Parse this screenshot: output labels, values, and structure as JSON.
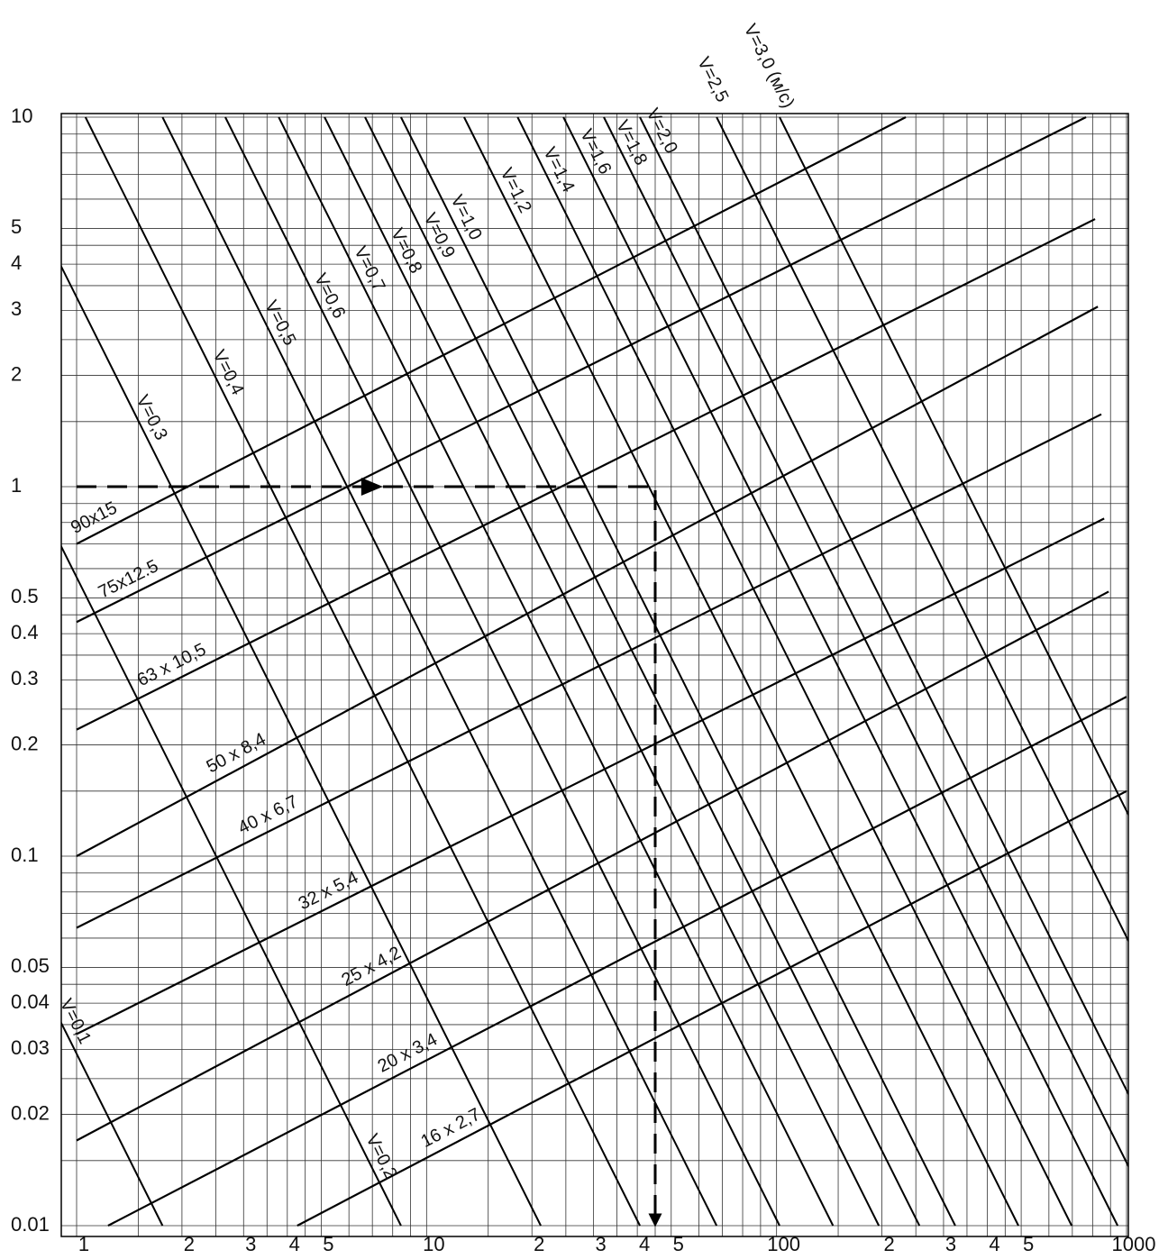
{
  "chart_data": {
    "type": "nomogram",
    "log_x": true,
    "log_y": true,
    "xlim": [
      1,
      1000
    ],
    "ylim": [
      0.01,
      10
    ],
    "xticks": [
      1,
      2,
      3,
      4,
      5,
      10,
      {
        "value": 20,
        "label": "2"
      },
      {
        "value": 30,
        "label": "3"
      },
      {
        "value": 40,
        "label": "4"
      },
      {
        "value": 50,
        "label": "5"
      },
      100,
      {
        "value": 200,
        "label": "2"
      },
      {
        "value": 300,
        "label": "3"
      },
      {
        "value": 400,
        "label": "4"
      },
      {
        "value": 500,
        "label": "5"
      },
      1000
    ],
    "yticks": [
      0.01,
      0.02,
      0.03,
      0.04,
      0.05,
      0.1,
      0.2,
      0.3,
      0.4,
      0.5,
      1,
      2,
      3,
      4,
      5,
      10
    ],
    "xgrid": [
      1,
      1.5,
      2,
      2.5,
      3,
      3.5,
      4,
      4.5,
      5,
      6,
      7,
      8,
      9,
      10,
      15,
      20,
      25,
      30,
      35,
      40,
      45,
      50,
      60,
      70,
      80,
      90,
      100,
      150,
      200,
      250,
      300,
      350,
      400,
      450,
      500,
      600,
      700,
      800,
      900,
      1000
    ],
    "ygrid": [
      0.01,
      0.015,
      0.02,
      0.025,
      0.03,
      0.035,
      0.04,
      0.045,
      0.05,
      0.06,
      0.07,
      0.08,
      0.09,
      0.1,
      0.15,
      0.2,
      0.25,
      0.3,
      0.35,
      0.4,
      0.45,
      0.5,
      0.6,
      0.7,
      0.8,
      0.9,
      1,
      1.5,
      2,
      2.5,
      3,
      3.5,
      4,
      4.5,
      5,
      6,
      7,
      8,
      9,
      10
    ],
    "color": "#000000",
    "diameter_lines": [
      {
        "name": "90x15",
        "x": [
          1,
          234
        ],
        "y": [
          0.7,
          10
        ]
      },
      {
        "name": "75x12.5",
        "x": [
          1,
          766
        ],
        "y": [
          0.43,
          10
        ]
      },
      {
        "name": "63 x 10,5",
        "x": [
          1,
          813
        ],
        "y": [
          0.22,
          5.3
        ]
      },
      {
        "name": "50 x 8,4",
        "x": [
          1,
          828
        ],
        "y": [
          0.1,
          3.07
        ]
      },
      {
        "name": "40 x 6,7",
        "x": [
          1,
          847
        ],
        "y": [
          0.064,
          1.57
        ]
      },
      {
        "name": "32 x 5,4",
        "x": [
          1,
          863
        ],
        "y": [
          0.033,
          0.82
        ]
      },
      {
        "name": "25 x 4,2",
        "x": [
          1,
          889
        ],
        "y": [
          0.017,
          0.52
        ]
      },
      {
        "name": "20 x 3,4",
        "x": [
          1.23,
          1000
        ],
        "y": [
          0.01,
          0.27
        ]
      },
      {
        "name": "16 x 2,7",
        "x": [
          4.27,
          1000
        ],
        "y": [
          0.01,
          0.15
        ]
      }
    ],
    "velocity_lines": [
      {
        "name": "V=0,1",
        "x": [
          0.046,
          1.76
        ],
        "y": [
          10,
          0.01
        ]
      },
      {
        "name": "V=0,2",
        "x": [
          0.22,
          8.45
        ],
        "y": [
          10,
          0.01
        ]
      },
      {
        "name": "V=0,3",
        "x": [
          0.553,
          21.2
        ],
        "y": [
          10,
          0.01
        ]
      },
      {
        "name": "V=0,4",
        "x": [
          1.06,
          40.7
        ],
        "y": [
          10,
          0.01
        ]
      },
      {
        "name": "V=0,5",
        "x": [
          1.76,
          67.4
        ],
        "y": [
          10,
          0.01
        ]
      },
      {
        "name": "V=0,6",
        "x": [
          2.66,
          102
        ],
        "y": [
          10,
          0.01
        ]
      },
      {
        "name": "V=0,7",
        "x": [
          3.78,
          145
        ],
        "y": [
          10,
          0.01
        ]
      },
      {
        "name": "V=0,8",
        "x": [
          5.11,
          196
        ],
        "y": [
          10,
          0.01
        ]
      },
      {
        "name": "V=0,9",
        "x": [
          6.67,
          256
        ],
        "y": [
          10,
          0.01
        ]
      },
      {
        "name": "V=1,0",
        "x": [
          8.45,
          324
        ],
        "y": [
          10,
          0.01
        ]
      },
      {
        "name": "V=1,2",
        "x": [
          12.8,
          491
        ],
        "y": [
          10,
          0.01
        ]
      },
      {
        "name": "V=1,4",
        "x": [
          18.2,
          697
        ],
        "y": [
          10,
          0.01
        ]
      },
      {
        "name": "V=1,6",
        "x": [
          24.6,
          943
        ],
        "y": [
          10,
          0.01
        ]
      },
      {
        "name": "V=1,8",
        "x": [
          32.1,
          1231
        ],
        "y": [
          10,
          0.01
        ]
      },
      {
        "name": "V=2,0",
        "x": [
          40.7,
          1561
        ],
        "y": [
          10,
          0.01
        ]
      },
      {
        "name": "V=2,5",
        "x": [
          67.4,
          2584
        ],
        "y": [
          10,
          0.01
        ]
      },
      {
        "name": "V=3,0 (м/с)",
        "x": [
          102,
          3914
        ],
        "y": [
          10,
          0.01
        ]
      }
    ],
    "example": {
      "x": [
        1,
        45,
        45
      ],
      "y": [
        1,
        1,
        0.01
      ]
    }
  }
}
